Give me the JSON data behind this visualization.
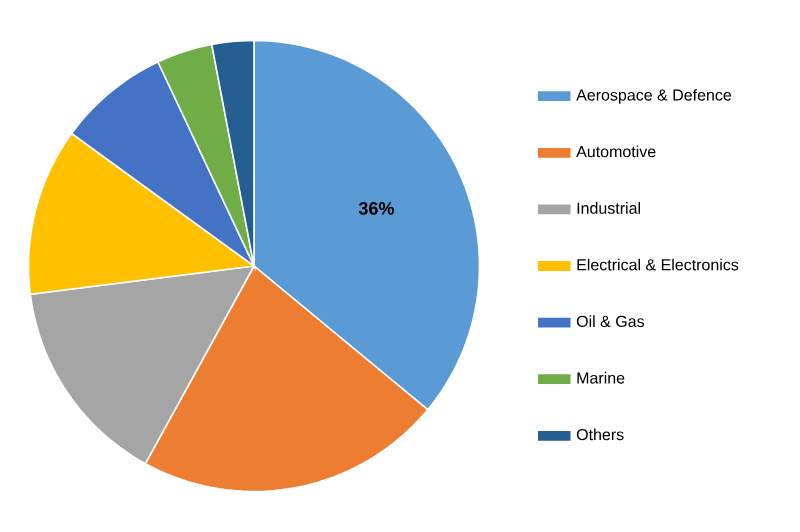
{
  "chart_data": {
    "type": "pie",
    "categories": [
      "Aerospace & Defence",
      "Automotive",
      "Industrial",
      "Electrical & Electronics",
      "Oil & Gas",
      "Marine",
      "Others"
    ],
    "values": [
      36,
      22,
      15,
      12,
      8,
      4,
      3
    ],
    "colors": [
      "#5b9bd5",
      "#ed7d31",
      "#a5a5a5",
      "#ffc000",
      "#4472c4",
      "#70ad47",
      "#255e91"
    ],
    "value_labels": [
      "36%",
      null,
      null,
      null,
      null,
      null,
      null
    ],
    "legend": "right"
  }
}
